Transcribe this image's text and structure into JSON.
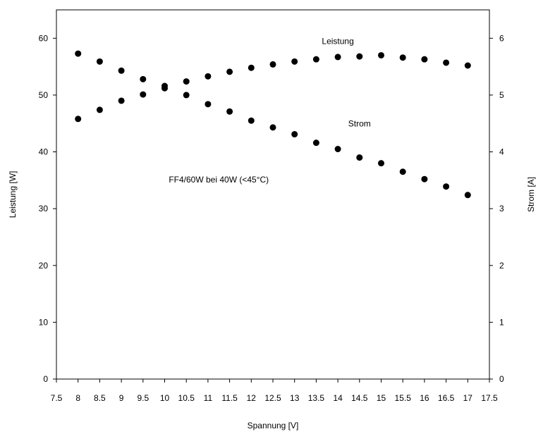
{
  "chart_data": {
    "type": "scatter",
    "xlabel": "Spannung [V]",
    "ylabel_left": "Leistung [W]",
    "ylabel_right": "Strom [A]",
    "xlim": [
      7.5,
      17.5
    ],
    "ylim_left": [
      0,
      65
    ],
    "ylim_right": [
      0,
      6.5
    ],
    "x_ticks": [
      "7.5",
      "8",
      "8.5",
      "9",
      "9.5",
      "10",
      "10.5",
      "11",
      "11.5",
      "12",
      "12.5",
      "13",
      "13.5",
      "14",
      "14.5",
      "15",
      "15.5",
      "16",
      "16.5",
      "17",
      "17.5"
    ],
    "y_left_ticks": [
      "0",
      "10",
      "20",
      "30",
      "40",
      "50",
      "60"
    ],
    "y_right_ticks": [
      "0",
      "1",
      "2",
      "3",
      "4",
      "5",
      "6"
    ],
    "grid": false,
    "marker_color": "#000000",
    "series": [
      {
        "name": "Leistung",
        "axis": "left",
        "x": [
          8,
          8.5,
          9,
          9.5,
          10,
          10.5,
          11,
          11.5,
          12,
          12.5,
          13,
          13.5,
          14,
          14.5,
          15,
          15.5,
          16,
          16.5,
          17
        ],
        "y": [
          45.8,
          47.4,
          49.0,
          50.1,
          51.2,
          52.4,
          53.3,
          54.1,
          54.8,
          55.4,
          55.9,
          56.3,
          56.7,
          56.8,
          57.0,
          56.6,
          56.3,
          55.7,
          55.2
        ]
      },
      {
        "name": "Strom",
        "axis": "right",
        "x": [
          8,
          8.5,
          9,
          9.5,
          10,
          10.5,
          11,
          11.5,
          12,
          12.5,
          13,
          13.5,
          14,
          14.5,
          15,
          15.5,
          16,
          16.5,
          17
        ],
        "y": [
          5.73,
          5.59,
          5.43,
          5.28,
          5.16,
          5.0,
          4.84,
          4.71,
          4.55,
          4.43,
          4.31,
          4.16,
          4.05,
          3.9,
          3.8,
          3.65,
          3.52,
          3.39,
          3.24
        ]
      }
    ],
    "annotations": [
      {
        "text": "Leistung",
        "x": 14,
        "y": 59,
        "axis": "left"
      },
      {
        "text": "Strom",
        "x": 14.5,
        "y": 4.45,
        "axis": "right"
      },
      {
        "text": "FF4/60W bei 40W (<45°C)",
        "x": 11.25,
        "y": 34.6,
        "axis": "left"
      }
    ]
  }
}
